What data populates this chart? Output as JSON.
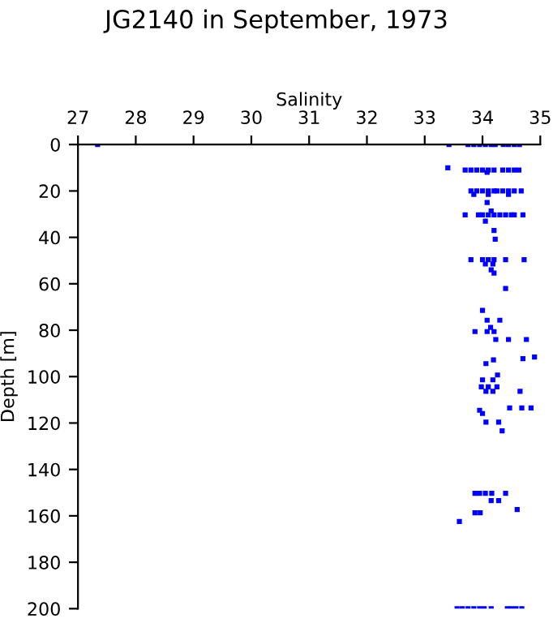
{
  "chart_data": {
    "type": "scatter",
    "title": "JG2140 in September, 1973",
    "xlabel": "Salinity",
    "ylabel": "Depth [m]",
    "xlim": [
      27,
      35
    ],
    "xticks": [
      27,
      28,
      29,
      30,
      31,
      32,
      33,
      34,
      35
    ],
    "ylim": [
      200,
      0
    ],
    "yticks": [
      0,
      20,
      40,
      60,
      80,
      100,
      120,
      140,
      160,
      180,
      200
    ],
    "grid": false,
    "marker": "square",
    "series": [
      {
        "color": "#0000ff",
        "x": [
          27.34,
          33.42,
          33.75,
          33.85,
          33.95,
          34.05,
          34.15,
          34.22,
          34.36,
          34.45,
          34.55,
          34.64,
          33.4,
          33.7,
          33.8,
          33.9,
          34.0,
          34.1,
          34.08,
          34.2,
          34.35,
          34.45,
          34.55,
          34.63,
          33.8,
          33.9,
          34.0,
          34.1,
          34.2,
          34.25,
          34.35,
          34.45,
          34.55,
          34.67,
          33.85,
          34.1,
          34.45,
          34.08,
          34.15,
          33.7,
          33.93,
          34.0,
          34.1,
          34.2,
          34.3,
          34.4,
          34.5,
          34.55,
          34.7,
          34.05,
          34.2,
          34.22,
          33.8,
          34.0,
          34.1,
          34.2,
          34.4,
          34.72,
          34.05,
          34.18,
          34.15,
          34.2,
          34.4,
          34.0,
          34.08,
          34.3,
          34.14,
          33.87,
          34.08,
          34.2,
          34.23,
          34.45,
          34.76,
          34.9,
          34.7,
          34.19,
          34.06,
          34.26,
          34.0,
          34.18,
          33.98,
          34.1,
          34.25,
          34.06,
          34.18,
          34.65,
          34.47,
          34.68,
          34.84,
          33.95,
          34.0,
          34.06,
          34.28,
          34.34,
          33.87,
          33.95,
          34.05,
          34.16,
          34.4,
          34.15,
          34.28,
          34.6,
          33.87,
          33.96,
          33.6,
          33.56,
          33.65,
          33.75,
          33.85,
          33.95,
          34.03,
          34.15,
          34.43,
          34.5,
          34.58,
          34.68
        ],
        "values": [
          0,
          0,
          0,
          0,
          0,
          0,
          0,
          0,
          0,
          0,
          0,
          0,
          10,
          11,
          11,
          11,
          11,
          11,
          12,
          11,
          11,
          11,
          11,
          11,
          20,
          20,
          20,
          20,
          20,
          20,
          20,
          20,
          20,
          20,
          21.5,
          21.5,
          21.5,
          25,
          28.6,
          30.3,
          30.3,
          30.3,
          30.3,
          30.3,
          30.3,
          30.3,
          30.3,
          30.3,
          30.3,
          33,
          37,
          40.8,
          49.6,
          49.6,
          49.6,
          49.6,
          49.6,
          49.6,
          51.5,
          51.5,
          54,
          55.4,
          62,
          71.5,
          75.7,
          75.7,
          78.8,
          80.6,
          80.6,
          80.6,
          84,
          84,
          84,
          91.6,
          92.3,
          92.8,
          94.4,
          99.3,
          101.4,
          101.4,
          104.4,
          104.4,
          104.4,
          106.3,
          106.3,
          106.3,
          113.5,
          113.5,
          113.5,
          114.5,
          115.9,
          119.6,
          119.6,
          123.4,
          150.3,
          150.3,
          150.3,
          150.3,
          150.3,
          153.4,
          153.4,
          157.3,
          158.7,
          158.7,
          162.4,
          200,
          200,
          200,
          200,
          200,
          200,
          200,
          200,
          200,
          200,
          200
        ]
      }
    ]
  }
}
